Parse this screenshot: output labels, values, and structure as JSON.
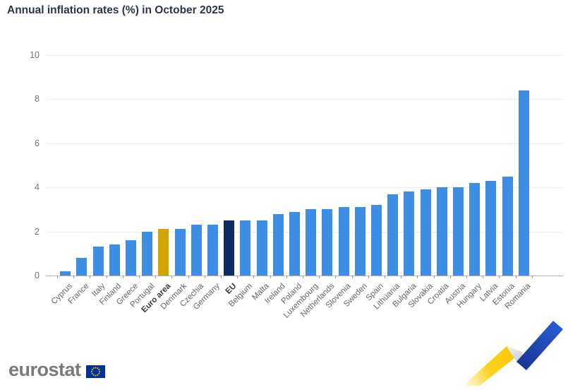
{
  "title": "Annual inflation rates (%) in October 2025",
  "colors": {
    "bar_default": "#3d8de5",
    "bar_euro_area": "#d2a400",
    "bar_eu": "#0e2b66",
    "gridline": "#e9eef5",
    "axis": "#b3b3b3",
    "y_label": "#757575",
    "x_label": "#666666",
    "x_label_emphasis": "#3a3a3a",
    "title": "#2b3648",
    "logo_text": "#7a7a7a",
    "flag_blue": "#003399",
    "flag_stars": "#ffcc00",
    "motif_yellow": "#ffd21e",
    "motif_blue": "#2352c8",
    "motif_gray": "#c9cdd4"
  },
  "chart_data": {
    "type": "bar",
    "title": "Annual inflation rates (%) in October 2025",
    "xlabel": "",
    "ylabel": "",
    "ylim": [
      0,
      10
    ],
    "yticks": [
      0,
      2,
      4,
      6,
      8,
      10
    ],
    "grid": true,
    "legend": "none",
    "categories": [
      "Cyprus",
      "France",
      "Italy",
      "Finland",
      "Greece",
      "Portugal",
      "Euro area",
      "Denmark",
      "Czechia",
      "Germany",
      "EU",
      "Belgium",
      "Malta",
      "Ireland",
      "Poland",
      "Luxembourg",
      "Netherlands",
      "Slovenia",
      "Sweden",
      "Spain",
      "Lithuania",
      "Bulgaria",
      "Slovakia",
      "Croatia",
      "Austria",
      "Hungary",
      "Latvia",
      "Estonia",
      "Romania"
    ],
    "values": [
      0.2,
      0.8,
      1.3,
      1.4,
      1.6,
      2.0,
      2.1,
      2.1,
      2.3,
      2.3,
      2.5,
      2.5,
      2.5,
      2.8,
      2.9,
      3.0,
      3.0,
      3.1,
      3.1,
      3.2,
      3.7,
      3.8,
      3.9,
      4.0,
      4.0,
      4.2,
      4.3,
      4.5,
      8.4
    ],
    "emphasized_categories": [
      "Euro area",
      "EU"
    ]
  },
  "logo": {
    "text": "eurostat"
  }
}
